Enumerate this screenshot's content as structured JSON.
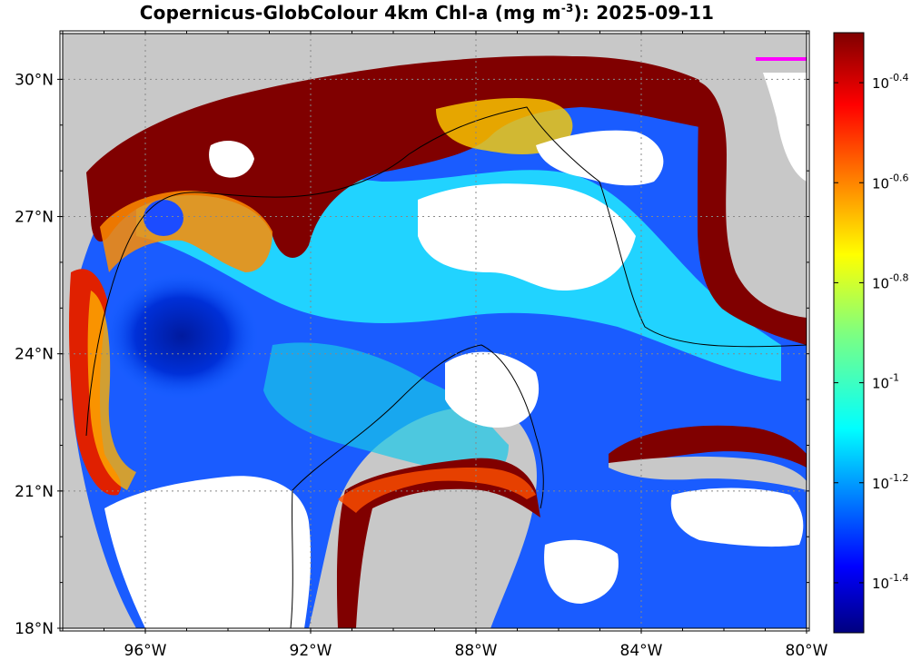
{
  "title": {
    "prefix": "Copernicus-GlobColour 4km Chl-a (mg m",
    "exponent": "-3",
    "suffix": "): 2025-09-11"
  },
  "map": {
    "lon_range": [
      -98,
      -80
    ],
    "lat_range": [
      18,
      31
    ],
    "x_ticks": [
      {
        "lon": -96,
        "label": "96°W"
      },
      {
        "lon": -92,
        "label": "92°W"
      },
      {
        "lon": -88,
        "label": "88°W"
      },
      {
        "lon": -84,
        "label": "84°W"
      },
      {
        "lon": -80,
        "label": "80°W"
      }
    ],
    "y_ticks": [
      {
        "lat": 30,
        "label": "30°N"
      },
      {
        "lat": 27,
        "label": "27°N"
      },
      {
        "lat": 24,
        "label": "24°N"
      },
      {
        "lat": 21,
        "label": "21°N"
      },
      {
        "lat": 18,
        "label": "18°N"
      }
    ],
    "land_color": "#c8c8c8",
    "nodata_color": "#ffffff",
    "grid": "dotted",
    "marker_color": "#ff00ff"
  },
  "colorbar": {
    "scale": "log10",
    "range": [
      -1.5,
      -0.3
    ],
    "colormap": "jet",
    "ticks": [
      {
        "value": -0.4,
        "base": "10",
        "exp": "-0.4"
      },
      {
        "value": -0.6,
        "base": "10",
        "exp": "-0.6"
      },
      {
        "value": -0.8,
        "base": "10",
        "exp": "-0.8"
      },
      {
        "value": -1.0,
        "base": "10",
        "exp": "-1"
      },
      {
        "value": -1.2,
        "base": "10",
        "exp": "-1.2"
      },
      {
        "value": -1.4,
        "base": "10",
        "exp": "-1.4"
      }
    ]
  }
}
